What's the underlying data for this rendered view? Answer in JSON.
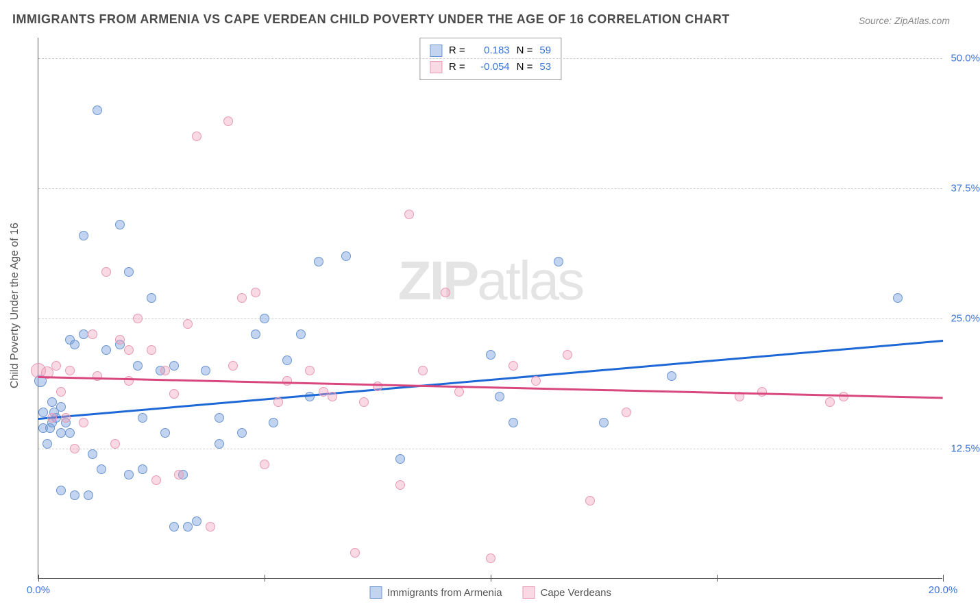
{
  "title": "IMMIGRANTS FROM ARMENIA VS CAPE VERDEAN CHILD POVERTY UNDER THE AGE OF 16 CORRELATION CHART",
  "source": "Source: ZipAtlas.com",
  "ylabel": "Child Poverty Under the Age of 16",
  "watermark_part1": "ZIP",
  "watermark_part2": "atlas",
  "chart": {
    "type": "scatter",
    "xlim": [
      0,
      20
    ],
    "ylim": [
      0,
      52
    ],
    "xticks": [
      0,
      5,
      10,
      15,
      20
    ],
    "xtick_labels": [
      "0.0%",
      "",
      "",
      "",
      "20.0%"
    ],
    "yticks": [
      12.5,
      25.0,
      37.5,
      50.0
    ],
    "ytick_labels": [
      "12.5%",
      "25.0%",
      "37.5%",
      "50.0%"
    ],
    "background_color": "#ffffff",
    "grid_color": "#cccccc",
    "axis_color": "#555555",
    "tick_label_color": "#3a74d8",
    "label_color": "#555555",
    "title_color": "#4a4a4a",
    "marker_base_size": 14,
    "series": [
      {
        "name": "Immigrants from Armenia",
        "fill_color": "rgba(120,160,220,0.45)",
        "stroke_color": "#6a95d0",
        "trend_color": "#1e68d6",
        "R": "0.183",
        "N": "59",
        "trend": {
          "x1": 0,
          "y1": 15.5,
          "x2": 20,
          "y2": 23.0
        },
        "points": [
          {
            "x": 0.05,
            "y": 19.0,
            "s": 18
          },
          {
            "x": 0.1,
            "y": 14.5
          },
          {
            "x": 0.1,
            "y": 16.0
          },
          {
            "x": 0.2,
            "y": 13.0
          },
          {
            "x": 0.25,
            "y": 14.5
          },
          {
            "x": 0.3,
            "y": 15.0
          },
          {
            "x": 0.3,
            "y": 17.0
          },
          {
            "x": 0.35,
            "y": 16.0
          },
          {
            "x": 0.4,
            "y": 15.5
          },
          {
            "x": 0.5,
            "y": 8.5
          },
          {
            "x": 0.5,
            "y": 14.0
          },
          {
            "x": 0.5,
            "y": 16.5
          },
          {
            "x": 0.6,
            "y": 15.0
          },
          {
            "x": 0.7,
            "y": 23.0
          },
          {
            "x": 0.7,
            "y": 14.0
          },
          {
            "x": 0.8,
            "y": 22.5
          },
          {
            "x": 0.8,
            "y": 8.0
          },
          {
            "x": 1.0,
            "y": 23.5
          },
          {
            "x": 1.0,
            "y": 33.0
          },
          {
            "x": 1.1,
            "y": 8.0
          },
          {
            "x": 1.2,
            "y": 12.0
          },
          {
            "x": 1.3,
            "y": 45.0
          },
          {
            "x": 1.4,
            "y": 10.5
          },
          {
            "x": 1.5,
            "y": 22.0
          },
          {
            "x": 1.8,
            "y": 34.0
          },
          {
            "x": 1.8,
            "y": 22.5
          },
          {
            "x": 2.0,
            "y": 29.5
          },
          {
            "x": 2.0,
            "y": 10.0
          },
          {
            "x": 2.2,
            "y": 20.5
          },
          {
            "x": 2.3,
            "y": 10.5
          },
          {
            "x": 2.3,
            "y": 15.5
          },
          {
            "x": 2.5,
            "y": 27.0
          },
          {
            "x": 2.7,
            "y": 20.0
          },
          {
            "x": 2.8,
            "y": 14.0
          },
          {
            "x": 3.0,
            "y": 20.5
          },
          {
            "x": 3.0,
            "y": 5.0
          },
          {
            "x": 3.2,
            "y": 10.0
          },
          {
            "x": 3.3,
            "y": 5.0
          },
          {
            "x": 3.5,
            "y": 5.5
          },
          {
            "x": 3.7,
            "y": 20.0
          },
          {
            "x": 4.0,
            "y": 15.5
          },
          {
            "x": 4.0,
            "y": 13.0
          },
          {
            "x": 4.5,
            "y": 14.0
          },
          {
            "x": 4.8,
            "y": 23.5
          },
          {
            "x": 5.0,
            "y": 25.0
          },
          {
            "x": 5.2,
            "y": 15.0
          },
          {
            "x": 5.5,
            "y": 21.0
          },
          {
            "x": 5.8,
            "y": 23.5
          },
          {
            "x": 6.0,
            "y": 17.5
          },
          {
            "x": 6.2,
            "y": 30.5
          },
          {
            "x": 6.8,
            "y": 31.0
          },
          {
            "x": 8.0,
            "y": 11.5
          },
          {
            "x": 10.0,
            "y": 21.5
          },
          {
            "x": 10.2,
            "y": 17.5
          },
          {
            "x": 10.5,
            "y": 15.0
          },
          {
            "x": 11.5,
            "y": 30.5
          },
          {
            "x": 12.5,
            "y": 15.0
          },
          {
            "x": 14.0,
            "y": 19.5
          },
          {
            "x": 19.0,
            "y": 27.0
          }
        ]
      },
      {
        "name": "Cape Verdeans",
        "fill_color": "rgba(240,160,185,0.40)",
        "stroke_color": "#e89ab2",
        "trend_color": "#d8487e",
        "R": "-0.054",
        "N": "53",
        "trend": {
          "x1": 0,
          "y1": 19.5,
          "x2": 20,
          "y2": 17.5
        },
        "points": [
          {
            "x": 0.0,
            "y": 20.0,
            "s": 22
          },
          {
            "x": 0.2,
            "y": 19.8,
            "s": 18
          },
          {
            "x": 0.3,
            "y": 15.5
          },
          {
            "x": 0.4,
            "y": 20.5
          },
          {
            "x": 0.5,
            "y": 18.0
          },
          {
            "x": 0.6,
            "y": 15.5
          },
          {
            "x": 0.7,
            "y": 20.0
          },
          {
            "x": 0.8,
            "y": 12.5
          },
          {
            "x": 1.0,
            "y": 15.0
          },
          {
            "x": 1.2,
            "y": 23.5
          },
          {
            "x": 1.3,
            "y": 19.5
          },
          {
            "x": 1.5,
            "y": 29.5
          },
          {
            "x": 1.7,
            "y": 13.0
          },
          {
            "x": 1.8,
            "y": 23.0
          },
          {
            "x": 2.0,
            "y": 22.0
          },
          {
            "x": 2.0,
            "y": 19.0
          },
          {
            "x": 2.2,
            "y": 25.0
          },
          {
            "x": 2.5,
            "y": 22.0
          },
          {
            "x": 2.6,
            "y": 9.5
          },
          {
            "x": 2.8,
            "y": 20.0
          },
          {
            "x": 3.0,
            "y": 17.8
          },
          {
            "x": 3.1,
            "y": 10.0
          },
          {
            "x": 3.3,
            "y": 24.5
          },
          {
            "x": 3.5,
            "y": 42.5
          },
          {
            "x": 3.8,
            "y": 5.0
          },
          {
            "x": 4.2,
            "y": 44.0
          },
          {
            "x": 4.3,
            "y": 20.5
          },
          {
            "x": 4.5,
            "y": 27.0
          },
          {
            "x": 4.8,
            "y": 27.5
          },
          {
            "x": 5.0,
            "y": 11.0
          },
          {
            "x": 5.3,
            "y": 17.0
          },
          {
            "x": 5.5,
            "y": 19.0
          },
          {
            "x": 6.0,
            "y": 20.0
          },
          {
            "x": 6.3,
            "y": 18.0
          },
          {
            "x": 6.5,
            "y": 17.5
          },
          {
            "x": 7.0,
            "y": 2.5
          },
          {
            "x": 7.2,
            "y": 17.0
          },
          {
            "x": 7.5,
            "y": 18.5
          },
          {
            "x": 8.0,
            "y": 9.0
          },
          {
            "x": 8.2,
            "y": 35.0
          },
          {
            "x": 8.5,
            "y": 20.0
          },
          {
            "x": 9.0,
            "y": 27.5
          },
          {
            "x": 9.3,
            "y": 18.0
          },
          {
            "x": 10.0,
            "y": 2.0
          },
          {
            "x": 10.5,
            "y": 20.5
          },
          {
            "x": 11.0,
            "y": 19.0
          },
          {
            "x": 11.7,
            "y": 21.5
          },
          {
            "x": 12.2,
            "y": 7.5
          },
          {
            "x": 13.0,
            "y": 16.0
          },
          {
            "x": 15.5,
            "y": 17.5
          },
          {
            "x": 16.0,
            "y": 18.0
          },
          {
            "x": 17.5,
            "y": 17.0
          },
          {
            "x": 17.8,
            "y": 17.5
          }
        ]
      }
    ],
    "stats_labels": {
      "R": "R =",
      "N": "N ="
    },
    "legend": {
      "s1_label": "Immigrants from Armenia",
      "s2_label": "Cape Verdeans"
    }
  }
}
